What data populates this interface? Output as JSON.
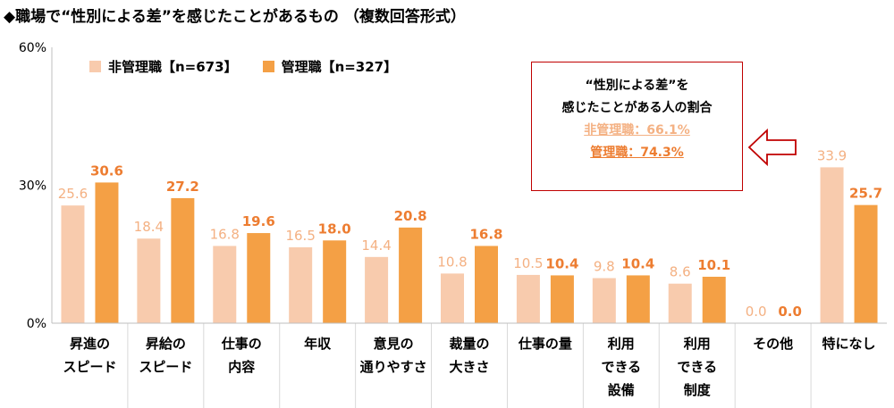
{
  "title": "◆職場で“性別による差”を感じたことがあるもの （複数回答形式）",
  "colors": {
    "non_manager": "#F8CBAD",
    "manager": "#F4A045",
    "non_manager_text": "#F4B183",
    "manager_text": "#ED7D31",
    "callout_border": "#C00000"
  },
  "legend": [
    {
      "label": "非管理職【n=673】"
    },
    {
      "label": "管理職【n=327】"
    }
  ],
  "callout": {
    "line1": "“性別による差”を",
    "line2": "感じたことがある人の割合",
    "non_manager": "非管理職：66.1%",
    "manager": "管理職：74.3%"
  },
  "chart_data": {
    "type": "bar",
    "title": "職場で“性別による差”を感じたことがあるもの",
    "ylim": [
      0,
      60
    ],
    "yticks": [
      "0%",
      "30%",
      "60%"
    ],
    "ytick_values": [
      0,
      30,
      60
    ],
    "categories": [
      [
        "昇進の",
        "スピード"
      ],
      [
        "昇給の",
        "スピード"
      ],
      [
        "仕事の",
        "内容"
      ],
      [
        "年収"
      ],
      [
        "意見の",
        "通りやすさ"
      ],
      [
        "裁量の",
        "大きさ"
      ],
      [
        "仕事の量"
      ],
      [
        "利用",
        "できる",
        "設備"
      ],
      [
        "利用",
        "できる",
        "制度"
      ],
      [
        "その他"
      ],
      [
        "特になし"
      ]
    ],
    "series": [
      {
        "name": "非管理職【n=673】",
        "values": [
          25.6,
          18.4,
          16.8,
          16.5,
          14.4,
          10.8,
          10.5,
          9.8,
          8.6,
          0.0,
          33.9
        ]
      },
      {
        "name": "管理職【n=327】",
        "values": [
          30.6,
          27.2,
          19.6,
          18.0,
          20.8,
          16.8,
          10.4,
          10.4,
          10.1,
          0.0,
          25.7
        ]
      }
    ]
  }
}
